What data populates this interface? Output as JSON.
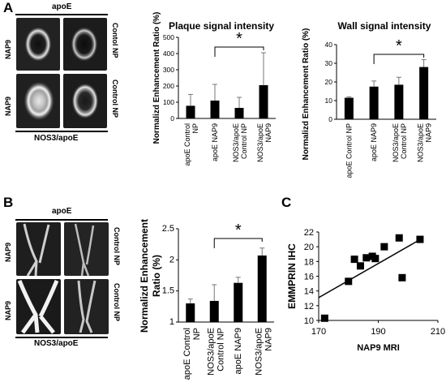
{
  "panels": {
    "A": {
      "letter": "A",
      "image_group_top": "apoE",
      "image_group_bottom": "NOS3/apoE",
      "row_label_left_top": "NAP9",
      "row_label_left_bottom": "NAP9",
      "row_label_right_top": "Contol NP",
      "row_label_right_bottom": "Control NP"
    },
    "B": {
      "letter": "B",
      "image_group_top": "apoE",
      "image_group_bottom": "NOS3/apoE",
      "row_label_left_top": "NAP9",
      "row_label_left_bottom": "NAP9",
      "row_label_right_top": "Control NP",
      "row_label_right_bottom": "Control NP"
    },
    "C": {
      "letter": "C"
    }
  },
  "chart_data": [
    {
      "id": "plaque",
      "type": "bar",
      "title": "Plaque signal intensity",
      "ylabel": "Normalizd Enhancement Ratio (%)",
      "ylim": [
        0,
        500
      ],
      "yticks": [
        0,
        100,
        200,
        300,
        400,
        500
      ],
      "categories": [
        "apoE Control NP",
        "apoE NAP9",
        "NOS3/apoE Control NP",
        "NOS3/apoE NAP9"
      ],
      "values": [
        78,
        110,
        65,
        205
      ],
      "errors": [
        70,
        100,
        65,
        200
      ],
      "significance": {
        "from": 1,
        "to": 3,
        "label": "*"
      }
    },
    {
      "id": "wall",
      "type": "bar",
      "title": "Wall signal intensity",
      "ylabel": "Normalizd Enhancement Ratio (%)",
      "ylim": [
        0,
        40
      ],
      "yticks": [
        0,
        10,
        20,
        30,
        40
      ],
      "categories": [
        "apoE Control NP",
        "apoE NAP9",
        "NOS3/apoE Control NP",
        "NOS3/apoE NAP9"
      ],
      "values": [
        11.5,
        17.5,
        18.5,
        28
      ],
      "errors": [
        0.5,
        3,
        4,
        4
      ],
      "significance": {
        "from": 1,
        "to": 3,
        "label": "*"
      }
    },
    {
      "id": "panelB",
      "type": "bar",
      "title": "",
      "ylabel": "Normalizd Enhancement Ratio (%)",
      "ylim": [
        1,
        2.5
      ],
      "yticks": [
        1,
        1.5,
        2,
        2.5
      ],
      "categories": [
        "apoE Control NP",
        "NOS3/apoE Control NP",
        "apoE NAP9",
        "NOS3/apoE NAP9"
      ],
      "values": [
        1.3,
        1.34,
        1.63,
        2.07
      ],
      "errors": [
        0.07,
        0.26,
        0.09,
        0.12
      ],
      "significance": {
        "from": 1,
        "to": 3,
        "label": "*"
      }
    },
    {
      "id": "scatter",
      "type": "scatter",
      "xlabel": "NAP9 MRI",
      "ylabel": "EMMPRIN IHC",
      "xlim": [
        170,
        210
      ],
      "ylim": [
        10,
        22
      ],
      "xticks": [
        170,
        190,
        210
      ],
      "yticks": [
        10,
        12,
        14,
        16,
        18,
        20,
        22
      ],
      "points": [
        [
          172,
          10.3
        ],
        [
          180,
          15.3
        ],
        [
          182,
          18.3
        ],
        [
          184,
          17.4
        ],
        [
          186,
          18.5
        ],
        [
          188,
          18.7
        ],
        [
          189,
          18.4
        ],
        [
          192,
          20.0
        ],
        [
          197,
          21.2
        ],
        [
          198,
          15.8
        ],
        [
          204,
          21.0
        ]
      ],
      "trendline": {
        "x": [
          170,
          205
        ],
        "y": [
          13.1,
          21.2
        ]
      }
    }
  ]
}
